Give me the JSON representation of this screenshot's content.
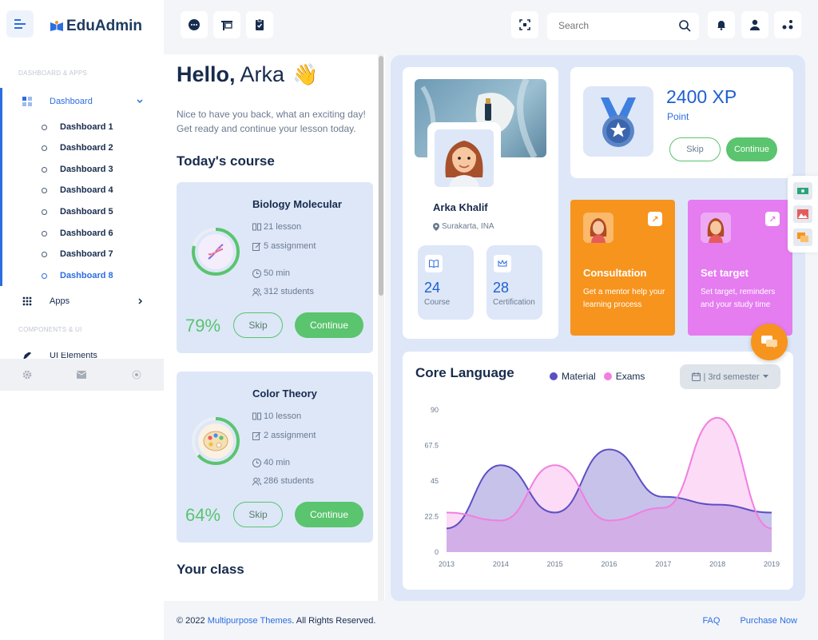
{
  "brand": {
    "name": "EduAdmin"
  },
  "sidebar": {
    "section1": "DASHBOARD & APPS",
    "dashboard_label": "Dashboard",
    "sub_items": [
      "Dashboard 1",
      "Dashboard 2",
      "Dashboard 3",
      "Dashboard 4",
      "Dashboard 5",
      "Dashboard 6",
      "Dashboard 7",
      "Dashboard 8"
    ],
    "apps_label": "Apps",
    "section2": "COMPONENTS & UI",
    "ui_label": "UI Elements"
  },
  "topbar": {
    "search_placeholder": "Search"
  },
  "greeting": {
    "hello": "Hello,",
    "name": "Arka",
    "wave": "👋",
    "intro": "Nice to have you back, what an exciting day! Get ready and continue your lesson today."
  },
  "todays_course": {
    "heading": "Today's course",
    "courses": [
      {
        "title": "Biology Molecular",
        "lessons": "21 lesson",
        "assignments": "5 assignment",
        "duration": "50 min",
        "students": "312 students",
        "percent": "79%",
        "progress": 0.79,
        "skip": "Skip",
        "continue": "Continue"
      },
      {
        "title": "Color Theory",
        "lessons": "10 lesson",
        "assignments": "2 assignment",
        "duration": "40 min",
        "students": "286 students",
        "percent": "64%",
        "progress": 0.64,
        "skip": "Skip",
        "continue": "Continue"
      }
    ]
  },
  "your_class": {
    "heading": "Your class"
  },
  "profile": {
    "name": "Arka Khalif",
    "location": "Surakarta, INA",
    "course_count": "24",
    "course_label": "Course",
    "cert_count": "28",
    "cert_label": "Certification"
  },
  "xp": {
    "value": "2400 XP",
    "label": "Point",
    "skip": "Skip",
    "continue": "Continue"
  },
  "cards": {
    "consultation": {
      "title": "Consultation",
      "desc": "Get a mentor help your learning process",
      "color": "#f7941d"
    },
    "target": {
      "title": "Set target",
      "desc": "Set target, reminders and your study time",
      "color": "#e57cf0"
    }
  },
  "chart": {
    "title": "Core Language",
    "legend_material": "Material",
    "legend_exams": "Exams",
    "semester": "| 3rd semester"
  },
  "chart_data": {
    "type": "area",
    "title": "Core Language",
    "x": [
      "2013",
      "2014",
      "2015",
      "2016",
      "2017",
      "2018",
      "2019"
    ],
    "y_ticks": [
      "0",
      "22.5",
      "45",
      "67.5",
      "90"
    ],
    "ylim": [
      0,
      90
    ],
    "series": [
      {
        "name": "Material",
        "color": "#5b4fc4",
        "values": [
          15,
          55,
          25,
          65,
          35,
          30,
          25
        ]
      },
      {
        "name": "Exams",
        "color": "#f27ee0",
        "values": [
          25,
          20,
          55,
          20,
          28,
          85,
          15
        ]
      }
    ],
    "legend_position": "top"
  },
  "footer": {
    "copy_prefix": "© 2022",
    "copy_link": "Multipurpose Themes",
    "copy_suffix": ". All Rights Reserved.",
    "faq": "FAQ",
    "purchase": "Purchase Now"
  }
}
